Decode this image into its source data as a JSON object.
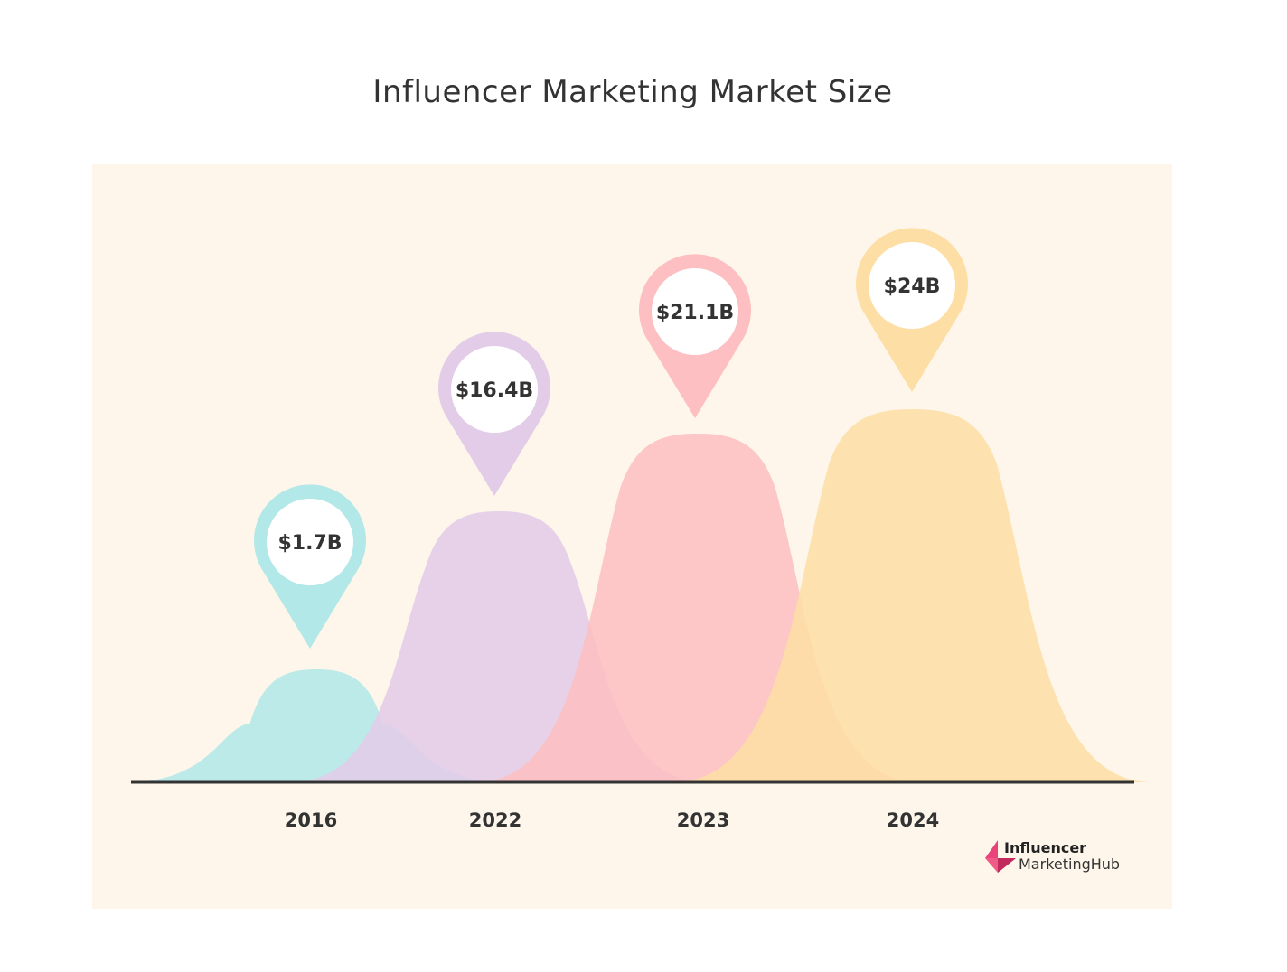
{
  "chart_data": {
    "type": "area",
    "title": "Influencer Marketing Market Size",
    "categories": [
      "2016",
      "2022",
      "2023",
      "2024"
    ],
    "values": [
      1.7,
      16.4,
      21.1,
      24
    ],
    "unit": "USD billions",
    "data_labels": [
      "$1.7B",
      "$16.4B",
      "$21.1B",
      "$24B"
    ],
    "xlabel": "",
    "ylabel": "",
    "grid": false,
    "colors": [
      "#b2e8e8",
      "#e2cce8",
      "#fdbfc1",
      "#fddfa6"
    ],
    "background": "#fef6ea"
  },
  "logo": {
    "line1": "Influencer",
    "line2": "MarketingHub"
  }
}
